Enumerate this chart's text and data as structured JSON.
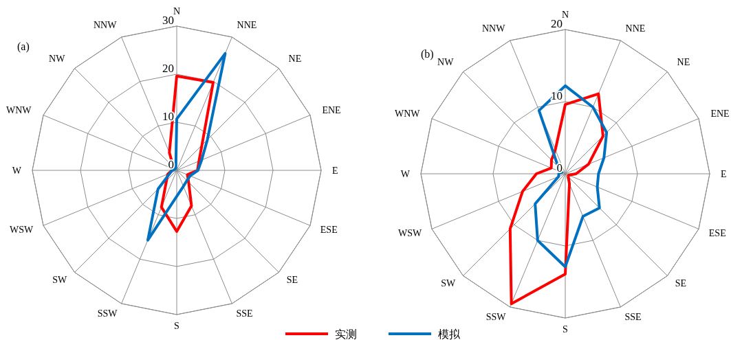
{
  "chart_data": [
    {
      "type": "radar",
      "title": "(a)",
      "categories": [
        "N",
        "NNE",
        "NE",
        "ENE",
        "E",
        "ESE",
        "SE",
        "SSE",
        "S",
        "SSW",
        "SW",
        "WSW",
        "W",
        "WNW",
        "NW",
        "NNW"
      ],
      "ylim": [
        0,
        30
      ],
      "yticks": [
        0,
        10,
        20,
        30
      ],
      "grid": true,
      "line_style": "solid",
      "marker": "none",
      "series": [
        {
          "color": "#ff0000",
          "values": [
            19.6,
            19.8,
            7.4,
            5,
            4.3,
            2.4,
            3.5,
            8,
            12.7,
            8.3,
            3,
            2,
            1,
            1,
            1,
            4
          ]
        },
        {
          "color": "#0070c0",
          "values": [
            10.7,
            26.3,
            9,
            5.6,
            4.4,
            3,
            3,
            3.6,
            5.4,
            15.7,
            5.5,
            1.5,
            1,
            0.5,
            0.5,
            0.5
          ]
        }
      ]
    },
    {
      "type": "radar",
      "title": "(b)",
      "categories": [
        "N",
        "NNE",
        "NE",
        "ENE",
        "E",
        "ESE",
        "SE",
        "SSE",
        "S",
        "SSW",
        "SW",
        "WSW",
        "W",
        "WNW",
        "NW",
        "NNW"
      ],
      "ylim": [
        0,
        20
      ],
      "yticks": [
        0,
        10,
        20
      ],
      "grid": true,
      "line_style": "solid",
      "marker": "none",
      "legend": "bottom",
      "series": [
        {
          "name": "实测",
          "color": "#ff0000",
          "values": [
            9.6,
            12,
            7.4,
            3.5,
            1.5,
            0.5,
            0.6,
            1.5,
            13.9,
            19.5,
            10.8,
            6.4,
            4,
            2.1,
            2.7,
            3.6
          ]
        },
        {
          "name": "模拟",
          "color": "#0070c0",
          "values": [
            12.2,
            10,
            8.1,
            5.8,
            4.6,
            4.8,
            6.7,
            6.4,
            12.9,
            10,
            5.9,
            1,
            0.9,
            0.5,
            1.4,
            9.5
          ]
        }
      ]
    }
  ]
}
